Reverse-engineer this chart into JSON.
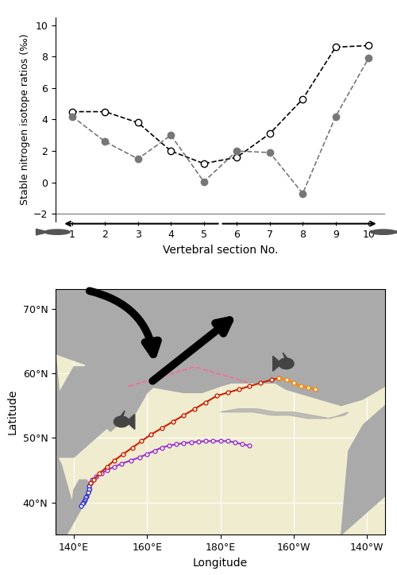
{
  "upper_graph": {
    "series1_x": [
      1,
      2,
      3,
      4,
      5,
      6,
      7,
      8,
      9,
      10
    ],
    "series1_y": [
      4.5,
      4.5,
      3.8,
      2.0,
      1.2,
      1.6,
      3.1,
      5.3,
      8.6,
      8.7
    ],
    "series2_x": [
      1,
      2,
      3,
      4,
      5,
      6,
      7,
      8,
      9,
      10
    ],
    "series2_y": [
      4.2,
      2.6,
      1.5,
      3.0,
      0.05,
      2.0,
      1.9,
      -0.7,
      4.2,
      7.9
    ],
    "ylim": [
      -2.5,
      10.5
    ],
    "yticks": [
      -2.0,
      0.0,
      2.0,
      4.0,
      6.0,
      8.0,
      10.0
    ],
    "xlim": [
      0.5,
      10.5
    ],
    "xticks": [
      1,
      2,
      3,
      4,
      5,
      6,
      7,
      8,
      9,
      10
    ],
    "xlabel": "Vertebral section No.",
    "ylabel": "Stable nitrogen isotope ratios (‰)"
  },
  "map": {
    "xlim": [
      135,
      225
    ],
    "ylim": [
      35,
      73
    ],
    "xtick_positions": [
      140,
      160,
      180,
      200,
      220
    ],
    "xtick_labels": [
      "140°E",
      "160°E",
      "180°E",
      "160°W",
      "140°W"
    ],
    "ytick_positions": [
      40,
      50,
      60,
      70
    ],
    "ytick_labels": [
      "40°N",
      "50°N",
      "60°N",
      "70°N"
    ],
    "xlabel": "Longitude",
    "ylabel": "Latitude",
    "land_color": "#AAAAAA",
    "ocean_color": "#F0ECD0",
    "grid_color": "white",
    "blue_route_lon": [
      144.5,
      144.2,
      144.0,
      143.8,
      143.5,
      143.3,
      143.0,
      142.8,
      142.5,
      142.3,
      142.0
    ],
    "blue_route_lat": [
      43.0,
      42.5,
      42.0,
      41.5,
      41.0,
      40.8,
      40.5,
      40.2,
      40.0,
      39.8,
      39.5
    ],
    "purple_route_lon": [
      144.5,
      145.0,
      146.0,
      147.5,
      149.0,
      151.0,
      153.0,
      155.5,
      158.0,
      160.0,
      162.0,
      164.0,
      166.0,
      168.0,
      170.0,
      172.0,
      174.0,
      176.0,
      178.0,
      180.0,
      182.0,
      184.0,
      186.0,
      188.0
    ],
    "purple_route_lat": [
      43.0,
      43.5,
      44.0,
      44.5,
      45.0,
      45.5,
      46.0,
      46.5,
      47.0,
      47.5,
      48.0,
      48.5,
      48.8,
      49.0,
      49.2,
      49.3,
      49.4,
      49.5,
      49.5,
      49.5,
      49.5,
      49.3,
      49.0,
      48.8
    ],
    "red_route_lon": [
      144.5,
      145.5,
      147.0,
      149.0,
      151.0,
      153.5,
      156.0,
      158.5,
      161.0,
      164.0,
      167.0,
      170.0,
      173.0,
      176.0,
      179.0,
      182.0,
      185.0,
      188.0,
      191.0,
      194.0,
      196.0
    ],
    "red_route_lat": [
      43.0,
      43.5,
      44.5,
      45.5,
      46.5,
      47.5,
      48.5,
      49.5,
      50.5,
      51.5,
      52.5,
      53.5,
      54.5,
      55.5,
      56.5,
      57.0,
      57.5,
      58.0,
      58.5,
      59.0,
      59.2
    ],
    "orange_route_lon": [
      196.0,
      198.0,
      200.0,
      202.0,
      204.0,
      206.0
    ],
    "orange_route_lat": [
      59.2,
      59.0,
      58.5,
      58.0,
      57.8,
      57.5
    ],
    "pink_route_lon": [
      155.0,
      158.0,
      161.0,
      164.0,
      167.0,
      170.0,
      173.0,
      176.0,
      179.0,
      182.0,
      185.0,
      188.0
    ],
    "pink_route_lat": [
      58.0,
      58.5,
      59.0,
      59.5,
      60.0,
      60.5,
      61.0,
      60.5,
      60.0,
      59.5,
      59.0,
      58.5
    ],
    "blue_color": "#3333CC",
    "purple_color": "#9933CC",
    "red_color": "#CC2200",
    "orange_color": "#FF8800",
    "pink_color": "#FF6699"
  }
}
